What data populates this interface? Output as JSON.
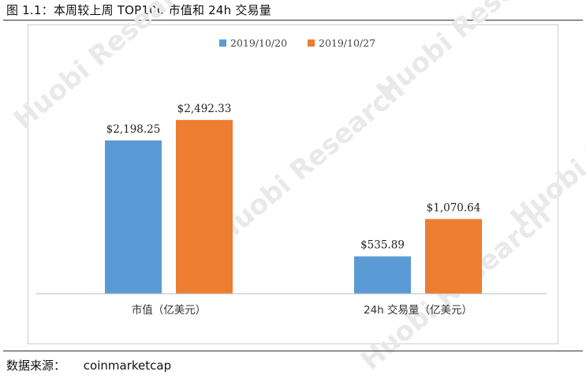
{
  "figure": {
    "title": "图 1.1：本周较上周 TOP100 市值和 24h 交易量",
    "source_label": "数据来源：",
    "source_value": "coinmarketcap"
  },
  "watermark": {
    "text": "Huobi Research"
  },
  "chart_data": {
    "type": "bar",
    "categories": [
      "市值（亿美元）",
      "24h 交易量（亿美元）"
    ],
    "series": [
      {
        "name": "2019/10/20",
        "color": "#5B9BD5",
        "values": [
          2198.25,
          535.89
        ],
        "labels": [
          "$2,198.25",
          "$535.89"
        ]
      },
      {
        "name": "2019/10/27",
        "color": "#ED7D31",
        "values": [
          2492.33,
          1070.64
        ],
        "labels": [
          "$2,492.33",
          "$1,070.64"
        ]
      }
    ],
    "ylim": [
      0,
      3000
    ],
    "legend": "top-center",
    "grid": false,
    "title": "",
    "xlabel": "",
    "ylabel": ""
  }
}
